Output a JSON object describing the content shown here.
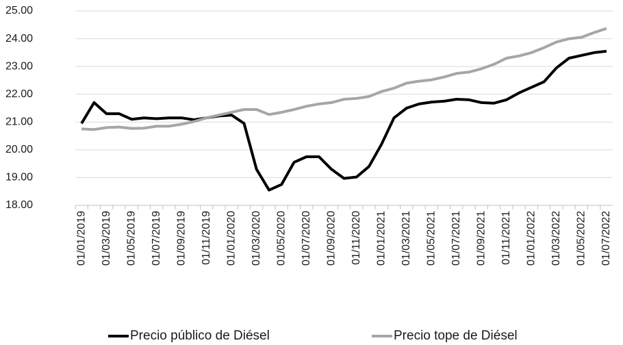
{
  "chart_data": {
    "type": "line",
    "categories": [
      "01/01/2019",
      null,
      "01/03/2019",
      null,
      "01/05/2019",
      null,
      "01/07/2019",
      null,
      "01/09/2019",
      null,
      "01/11/2019",
      null,
      "01/01/2020",
      null,
      "01/03/2020",
      null,
      "01/05/2020",
      null,
      "01/07/2020",
      null,
      "01/09/2020",
      null,
      "01/11/2020",
      null,
      "01/01/2021",
      null,
      "01/03/2021",
      null,
      "01/05/2021",
      null,
      "01/07/2021",
      null,
      "01/09/2021",
      null,
      "01/11/2021",
      null,
      "01/01/2022",
      null,
      "01/03/2022",
      null,
      "01/05/2022",
      null,
      "01/07/2022"
    ],
    "series": [
      {
        "name": "Precio público de Diésel",
        "color": "#000000",
        "values": [
          20.95,
          21.7,
          21.3,
          21.3,
          21.1,
          21.15,
          21.12,
          21.15,
          21.15,
          21.08,
          21.15,
          21.22,
          21.25,
          20.95,
          19.3,
          18.55,
          18.75,
          19.55,
          19.75,
          19.75,
          19.3,
          18.97,
          19.02,
          19.4,
          20.2,
          21.15,
          21.5,
          21.65,
          21.72,
          21.75,
          21.82,
          21.8,
          21.7,
          21.68,
          21.8,
          22.05,
          22.25,
          22.45,
          22.95,
          23.3,
          23.4,
          23.5,
          23.55
        ]
      },
      {
        "name": "Precio tope de Diésel",
        "color": "#a6a6a6",
        "values": [
          20.75,
          20.73,
          20.8,
          20.82,
          20.77,
          20.78,
          20.85,
          20.85,
          20.92,
          21.02,
          21.15,
          21.25,
          21.35,
          21.45,
          21.45,
          21.27,
          21.35,
          21.45,
          21.57,
          21.65,
          21.7,
          21.82,
          21.85,
          21.92,
          22.1,
          22.22,
          22.4,
          22.47,
          22.52,
          22.62,
          22.75,
          22.8,
          22.92,
          23.08,
          23.3,
          23.38,
          23.5,
          23.68,
          23.88,
          24.0,
          24.05,
          24.22,
          24.37
        ]
      }
    ],
    "ylim": [
      18,
      25
    ],
    "yticks": [
      {
        "value": 18,
        "label": "18.00"
      },
      {
        "value": 19,
        "label": "19.00"
      },
      {
        "value": 20,
        "label": "20.00"
      },
      {
        "value": 21,
        "label": "21.00"
      },
      {
        "value": 22,
        "label": "22.00"
      },
      {
        "value": 23,
        "label": "23.00"
      },
      {
        "value": 24,
        "label": "24.00"
      },
      {
        "value": 25,
        "label": "25.00"
      }
    ],
    "grid": true,
    "legend": "bottom"
  }
}
